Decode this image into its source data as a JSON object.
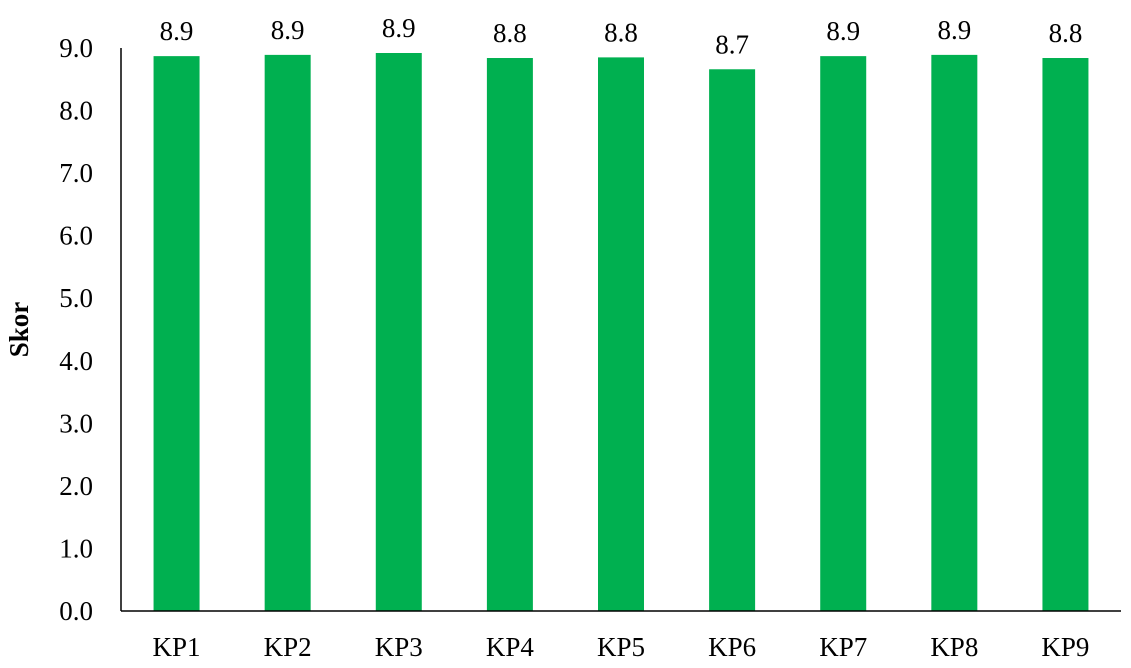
{
  "chart_data": {
    "type": "bar",
    "categories": [
      "KP1",
      "KP2",
      "KP3",
      "KP4",
      "KP5",
      "KP6",
      "KP7",
      "KP8",
      "KP9"
    ],
    "values": [
      8.87,
      8.89,
      8.92,
      8.84,
      8.85,
      8.66,
      8.87,
      8.89,
      8.84
    ],
    "data_labels": [
      "8.9",
      "8.9",
      "8.9",
      "8.8",
      "8.8",
      "8.7",
      "8.9",
      "8.9",
      "8.8"
    ],
    "y_ticks": [
      "0.0",
      "1.0",
      "2.0",
      "3.0",
      "4.0",
      "5.0",
      "6.0",
      "7.0",
      "8.0",
      "9.0"
    ],
    "title": "",
    "xlabel": "",
    "ylabel": "Skor",
    "ylim": [
      0,
      9
    ],
    "grid": false,
    "legend": "none",
    "bar_color": "#00B050",
    "axis_color": "#000000"
  }
}
